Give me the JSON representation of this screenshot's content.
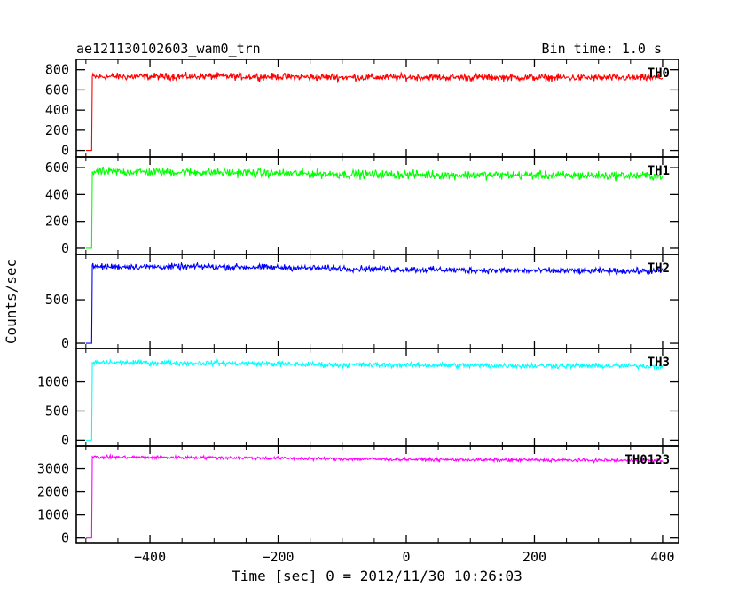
{
  "header": {
    "title": "ae121130102603_wam0_trn",
    "bin_time": "Bin time: 1.0 s"
  },
  "chart_data": {
    "type": "line",
    "xlabel": "Time [sec] 0 = 2012/11/30 10:26:03",
    "ylabel": "Counts/sec",
    "xlim": [
      -515,
      425
    ],
    "xticks": [
      -400,
      -200,
      0,
      200,
      400
    ],
    "x_tick_labels": [
      "−400",
      "−200",
      "0",
      "200",
      "400"
    ],
    "grid": false,
    "step_time": -490,
    "x_start": -500,
    "x_end": 400,
    "panels": [
      {
        "name": "TH0",
        "color": "#ff0000",
        "ylim": [
          -30,
          850
        ],
        "yticks": [
          0,
          200,
          400,
          600,
          800
        ],
        "pre_level": 0,
        "noise": 30,
        "profile": [
          {
            "x": -490,
            "y": 730
          },
          {
            "x": -300,
            "y": 735
          },
          {
            "x": -100,
            "y": 725
          },
          {
            "x": 100,
            "y": 725
          },
          {
            "x": 300,
            "y": 720
          },
          {
            "x": 400,
            "y": 720
          }
        ]
      },
      {
        "name": "TH1",
        "color": "#00ff00",
        "ylim": [
          -20,
          640
        ],
        "yticks": [
          0,
          200,
          400,
          600
        ],
        "pre_level": 0,
        "noise": 28,
        "profile": [
          {
            "x": -490,
            "y": 570
          },
          {
            "x": -300,
            "y": 565
          },
          {
            "x": -100,
            "y": 550
          },
          {
            "x": 100,
            "y": 545
          },
          {
            "x": 300,
            "y": 540
          },
          {
            "x": 400,
            "y": 540
          }
        ]
      },
      {
        "name": "TH2",
        "color": "#0000ff",
        "ylim": [
          -20,
          960
        ],
        "yticks": [
          0,
          500
        ],
        "pre_level": 0,
        "noise": 30,
        "profile": [
          {
            "x": -490,
            "y": 880
          },
          {
            "x": -300,
            "y": 880
          },
          {
            "x": -100,
            "y": 860
          },
          {
            "x": 100,
            "y": 840
          },
          {
            "x": 300,
            "y": 830
          },
          {
            "x": 400,
            "y": 830
          }
        ]
      },
      {
        "name": "TH3",
        "color": "#00ffff",
        "ylim": [
          -40,
          1480
        ],
        "yticks": [
          0,
          500,
          1000
        ],
        "pre_level": 0,
        "noise": 40,
        "profile": [
          {
            "x": -490,
            "y": 1330
          },
          {
            "x": -300,
            "y": 1320
          },
          {
            "x": -100,
            "y": 1290
          },
          {
            "x": 100,
            "y": 1280
          },
          {
            "x": 300,
            "y": 1270
          },
          {
            "x": 400,
            "y": 1270
          }
        ]
      },
      {
        "name": "TH0123",
        "color": "#ff00ff",
        "ylim": [
          -50,
          3750
        ],
        "yticks": [
          0,
          1000,
          2000,
          3000
        ],
        "pre_level": 0,
        "noise": 60,
        "profile": [
          {
            "x": -490,
            "y": 3500
          },
          {
            "x": -300,
            "y": 3480
          },
          {
            "x": -100,
            "y": 3420
          },
          {
            "x": 100,
            "y": 3380
          },
          {
            "x": 300,
            "y": 3360
          },
          {
            "x": 400,
            "y": 3350
          }
        ]
      }
    ]
  }
}
